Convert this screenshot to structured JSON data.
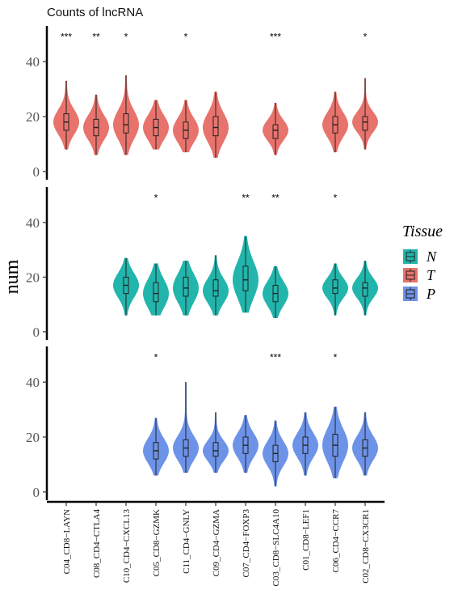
{
  "chart_data": {
    "type": "violin",
    "title": "Counts of lncRNA",
    "ylabel": "num",
    "xlabel": "",
    "ylim": [
      -3,
      53
    ],
    "yticks": [
      0,
      20,
      40
    ],
    "categories": [
      "C04_CD8−LAYN",
      "C08_CD4−CTLA4",
      "C10_CD4−CXCL13",
      "C05_CD8−GZMK",
      "C11_CD4−GNLY",
      "C09_CD4−GZMA",
      "C07_CD4−FOXP3",
      "C03_CD8−SLC4A10",
      "C01_CD8−LEF1",
      "C06_CD4−CCR7",
      "C02_CD8−CX3CR1"
    ],
    "legend": {
      "title": "Tissue",
      "position": "right",
      "entries": [
        "N",
        "T",
        "P"
      ]
    },
    "series": [
      {
        "name": "T",
        "color": "#E8736C",
        "groups": [
          {
            "category": "C04_CD8−LAYN",
            "min": 8,
            "q1": 15,
            "median": 18,
            "q3": 21,
            "max": 33,
            "sig": "***"
          },
          {
            "category": "C08_CD4−CTLA4",
            "min": 6,
            "q1": 13,
            "median": 16,
            "q3": 19,
            "max": 28,
            "sig": "**"
          },
          {
            "category": "C10_CD4−CXCL13",
            "min": 6,
            "q1": 14,
            "median": 17,
            "q3": 21,
            "max": 35,
            "sig": "*"
          },
          {
            "category": "C05_CD8−GZMK",
            "min": 8,
            "q1": 13,
            "median": 16,
            "q3": 19,
            "max": 26,
            "sig": ""
          },
          {
            "category": "C11_CD4−GNLY",
            "min": 7,
            "q1": 12,
            "median": 15,
            "q3": 18,
            "max": 26,
            "sig": "*"
          },
          {
            "category": "C09_CD4−GZMA",
            "min": 5,
            "q1": 13,
            "median": 16,
            "q3": 20,
            "max": 29,
            "sig": ""
          },
          {
            "category": "C07_CD4−FOXP3",
            "present": false,
            "sig": ""
          },
          {
            "category": "C03_CD8−SLC4A10",
            "min": 6,
            "q1": 12,
            "median": 15,
            "q3": 17,
            "max": 25,
            "sig": "***"
          },
          {
            "category": "C01_CD8−LEF1",
            "present": false,
            "sig": ""
          },
          {
            "category": "C06_CD4−CCR7",
            "min": 7,
            "q1": 14,
            "median": 17,
            "q3": 20,
            "max": 29,
            "sig": ""
          },
          {
            "category": "C02_CD8−CX3CR1",
            "min": 8,
            "q1": 15,
            "median": 18,
            "q3": 20,
            "max": 34,
            "sig": "*"
          }
        ]
      },
      {
        "name": "N",
        "color": "#22B5AC",
        "groups": [
          {
            "category": "C04_CD8−LAYN",
            "present": false,
            "sig": ""
          },
          {
            "category": "C08_CD4−CTLA4",
            "present": false,
            "sig": ""
          },
          {
            "category": "C10_CD4−CXCL13",
            "min": 6,
            "q1": 14,
            "median": 17,
            "q3": 20,
            "max": 27,
            "sig": ""
          },
          {
            "category": "C05_CD8−GZMK",
            "min": 6,
            "q1": 11,
            "median": 14,
            "q3": 18,
            "max": 25,
            "sig": "*"
          },
          {
            "category": "C11_CD4−GNLY",
            "min": 6,
            "q1": 13,
            "median": 16,
            "q3": 20,
            "max": 26,
            "sig": ""
          },
          {
            "category": "C09_CD4−GZMA",
            "min": 6,
            "q1": 13,
            "median": 15,
            "q3": 19,
            "max": 28,
            "sig": ""
          },
          {
            "category": "C07_CD4−FOXP3",
            "min": 7,
            "q1": 15,
            "median": 19,
            "q3": 24,
            "max": 35,
            "sig": "**"
          },
          {
            "category": "C03_CD8−SLC4A10",
            "min": 5,
            "q1": 11,
            "median": 14,
            "q3": 17,
            "max": 24,
            "sig": "**"
          },
          {
            "category": "C01_CD8−LEF1",
            "present": false,
            "sig": ""
          },
          {
            "category": "C06_CD4−CCR7",
            "min": 6,
            "q1": 14,
            "median": 16,
            "q3": 19,
            "max": 25,
            "sig": "*"
          },
          {
            "category": "C02_CD8−CX3CR1",
            "min": 6,
            "q1": 13,
            "median": 16,
            "q3": 18,
            "max": 26,
            "sig": ""
          }
        ]
      },
      {
        "name": "P",
        "color": "#6D93E8",
        "groups": [
          {
            "category": "C04_CD8−LAYN",
            "present": false,
            "sig": ""
          },
          {
            "category": "C08_CD4−CTLA4",
            "present": false,
            "sig": ""
          },
          {
            "category": "C10_CD4−CXCL13",
            "present": false,
            "sig": ""
          },
          {
            "category": "C05_CD8−GZMK",
            "min": 6,
            "q1": 12,
            "median": 15,
            "q3": 18,
            "max": 27,
            "sig": "*"
          },
          {
            "category": "C11_CD4−GNLY",
            "min": 7,
            "q1": 13,
            "median": 16,
            "q3": 19,
            "max": 40,
            "sig": ""
          },
          {
            "category": "C09_CD4−GZMA",
            "min": 7,
            "q1": 13,
            "median": 15,
            "q3": 18,
            "max": 29,
            "sig": ""
          },
          {
            "category": "C07_CD4−FOXP3",
            "min": 7,
            "q1": 14,
            "median": 17,
            "q3": 20,
            "max": 28,
            "sig": ""
          },
          {
            "category": "C03_CD8−SLC4A10",
            "min": 2,
            "q1": 11,
            "median": 14,
            "q3": 17,
            "max": 26,
            "sig": "***"
          },
          {
            "category": "C01_CD8−LEF1",
            "min": 6,
            "q1": 14,
            "median": 17,
            "q3": 20,
            "max": 29,
            "sig": ""
          },
          {
            "category": "C06_CD4−CCR7",
            "min": 5,
            "q1": 13,
            "median": 17,
            "q3": 21,
            "max": 31,
            "sig": "*"
          },
          {
            "category": "C02_CD8−CX3CR1",
            "min": 6,
            "q1": 13,
            "median": 16,
            "q3": 19,
            "max": 29,
            "sig": ""
          }
        ]
      }
    ]
  }
}
